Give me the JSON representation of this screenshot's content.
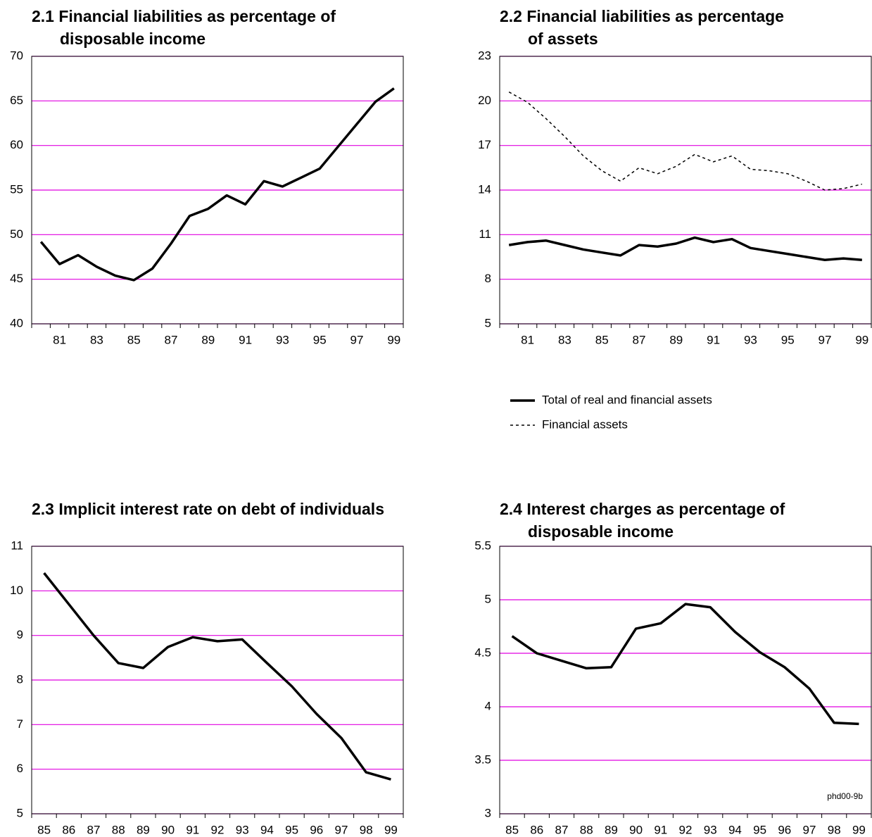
{
  "chart_data": [
    {
      "type": "line",
      "title": [
        "2.1 Financial liabilities as percentage of",
        "disposable income"
      ],
      "categories": [
        null,
        "81",
        null,
        "83",
        null,
        "85",
        null,
        "87",
        null,
        "89",
        null,
        "91",
        null,
        "93",
        null,
        "95",
        null,
        "97",
        null,
        "99"
      ],
      "series": [
        {
          "name": "Financial liabilities",
          "color": "#000000",
          "dash": false,
          "values": [
            49.2,
            46.7,
            47.7,
            46.4,
            45.4,
            44.9,
            46.2,
            49.0,
            52.1,
            52.9,
            54.4,
            53.4,
            56.0,
            55.4,
            56.4,
            57.4,
            59.9,
            62.4,
            64.9,
            66.4
          ]
        }
      ],
      "ylim": [
        40,
        70
      ],
      "yticks": [
        40,
        45,
        50,
        55,
        60,
        65,
        70
      ],
      "grid": true,
      "grid_color": "#e000e0"
    },
    {
      "type": "line",
      "title": [
        "2.2 Financial liabilities as percentage",
        "of assets"
      ],
      "categories": [
        null,
        "81",
        null,
        "83",
        null,
        "85",
        null,
        "87",
        null,
        "89",
        null,
        "91",
        null,
        "93",
        null,
        "95",
        null,
        "97",
        null,
        "99"
      ],
      "series": [
        {
          "name": "Total of real and financial assets",
          "color": "#000000",
          "dash": false,
          "values": [
            10.3,
            10.5,
            10.6,
            10.3,
            10.0,
            9.8,
            9.6,
            10.3,
            10.2,
            10.4,
            10.8,
            10.5,
            10.7,
            10.1,
            9.9,
            9.7,
            9.5,
            9.3,
            9.4,
            9.3
          ]
        },
        {
          "name": "Financial assets",
          "color": "#000000",
          "dash": true,
          "values": [
            20.6,
            19.9,
            18.8,
            17.6,
            16.3,
            15.3,
            14.6,
            15.5,
            15.1,
            15.6,
            16.4,
            15.9,
            16.3,
            15.4,
            15.3,
            15.1,
            14.6,
            14.0,
            14.1,
            14.4
          ]
        }
      ],
      "ylim": [
        5,
        23
      ],
      "yticks": [
        5,
        8,
        11,
        14,
        17,
        20,
        23
      ],
      "grid": true,
      "grid_color": "#e000e0",
      "legend": "below"
    },
    {
      "type": "line",
      "title": [
        "2.3 Implicit interest rate on debt of individuals"
      ],
      "categories": [
        "85",
        "86",
        "87",
        "88",
        "89",
        "90",
        "91",
        "92",
        "93",
        "94",
        "95",
        "96",
        "97",
        "98",
        "99"
      ],
      "series": [
        {
          "name": "Implicit interest rate",
          "color": "#000000",
          "dash": false,
          "values": [
            10.4,
            9.7,
            9.0,
            8.38,
            8.27,
            8.74,
            8.96,
            8.87,
            8.91,
            8.38,
            7.86,
            7.24,
            6.7,
            5.93,
            5.77
          ]
        }
      ],
      "ylim": [
        5,
        11
      ],
      "yticks": [
        5,
        6,
        7,
        8,
        9,
        10,
        11
      ],
      "grid": true,
      "grid_color": "#e000e0"
    },
    {
      "type": "line",
      "title": [
        "2.4 Interest charges as percentage of",
        "disposable income"
      ],
      "categories": [
        "85",
        "86",
        "87",
        "88",
        "89",
        "90",
        "91",
        "92",
        "93",
        "94",
        "95",
        "96",
        "97",
        "98",
        "99"
      ],
      "series": [
        {
          "name": "Interest charges",
          "color": "#000000",
          "dash": false,
          "values": [
            4.66,
            4.5,
            4.43,
            4.36,
            4.37,
            4.73,
            4.78,
            4.96,
            4.93,
            4.7,
            4.51,
            4.37,
            4.17,
            3.85,
            3.84
          ]
        }
      ],
      "ylim": [
        3,
        5.5
      ],
      "yticks": [
        3,
        3.5,
        4,
        4.5,
        5,
        5.5
      ],
      "grid": true,
      "grid_color": "#e000e0",
      "annotation": "phd00-9b"
    }
  ]
}
